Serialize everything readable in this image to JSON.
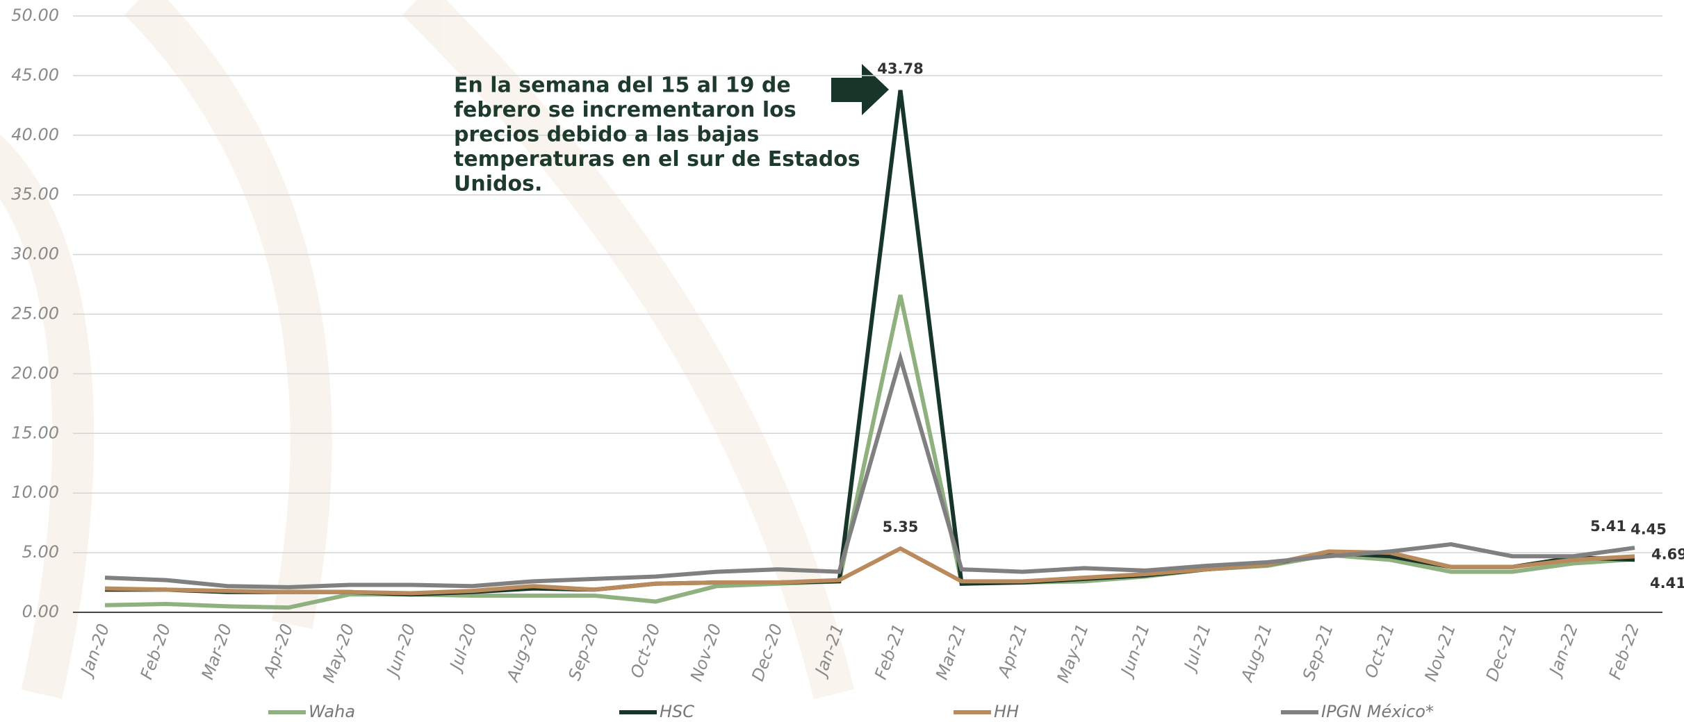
{
  "chart_data": {
    "type": "line",
    "annotation": [
      "En la semana del 15 al 19 de",
      "febrero se incrementaron los",
      "precios debido a las bajas",
      "temperaturas en el sur de Estados",
      "Unidos."
    ],
    "categories": [
      "Jan-20",
      "Feb-20",
      "Mar-20",
      "Apr-20",
      "May-20",
      "Jun-20",
      "Jul-20",
      "Aug-20",
      "Sep-20",
      "Oct-20",
      "Nov-20",
      "Dec-20",
      "Jan-21",
      "Feb-21",
      "Mar-21",
      "Apr-21",
      "May-21",
      "Jun-21",
      "Jul-21",
      "Aug-21",
      "Sep-21",
      "Oct-21",
      "Nov-21",
      "Dec-21",
      "Jan-22",
      "Feb-22"
    ],
    "series": [
      {
        "name": "Waha",
        "color": "#8fb07f",
        "values": [
          0.6,
          0.7,
          0.5,
          0.4,
          1.5,
          1.5,
          1.4,
          1.4,
          1.4,
          0.9,
          2.2,
          2.4,
          2.6,
          26.6,
          2.5,
          2.5,
          2.6,
          3.0,
          3.6,
          3.9,
          4.8,
          4.4,
          3.4,
          3.4,
          4.1,
          4.45
        ],
        "value_labels": [
          null,
          null,
          null,
          null,
          null,
          null,
          null,
          null,
          null,
          null,
          null,
          null,
          null,
          null,
          null,
          null,
          null,
          null,
          null,
          null,
          null,
          null,
          null,
          null,
          null,
          "4.45"
        ]
      },
      {
        "name": "HSC",
        "color": "#173528",
        "values": [
          1.9,
          1.9,
          1.7,
          1.7,
          1.7,
          1.5,
          1.7,
          2.0,
          1.9,
          2.4,
          2.5,
          2.5,
          2.6,
          43.78,
          2.4,
          2.5,
          2.8,
          3.1,
          3.6,
          4.0,
          5.0,
          4.7,
          3.8,
          3.8,
          4.6,
          4.41
        ],
        "value_labels": [
          null,
          null,
          null,
          null,
          null,
          null,
          null,
          null,
          null,
          null,
          null,
          null,
          null,
          "43.78",
          null,
          null,
          null,
          null,
          null,
          null,
          null,
          null,
          null,
          null,
          null,
          "4.41"
        ]
      },
      {
        "name": "HH",
        "color": "#b98a5c",
        "values": [
          2.0,
          1.9,
          1.8,
          1.7,
          1.7,
          1.6,
          1.8,
          2.2,
          1.9,
          2.4,
          2.5,
          2.5,
          2.7,
          5.35,
          2.6,
          2.6,
          2.9,
          3.2,
          3.6,
          4.0,
          5.1,
          5.0,
          3.8,
          3.8,
          4.4,
          4.69
        ],
        "value_labels": [
          null,
          null,
          null,
          null,
          null,
          null,
          null,
          null,
          null,
          null,
          null,
          null,
          null,
          "5.35",
          null,
          null,
          null,
          null,
          null,
          null,
          null,
          null,
          null,
          null,
          null,
          "4.69"
        ]
      },
      {
        "name": "IPGN México*",
        "color": "#808080",
        "values": [
          2.9,
          2.7,
          2.2,
          2.1,
          2.3,
          2.3,
          2.2,
          2.6,
          2.8,
          3.0,
          3.4,
          3.6,
          3.4,
          21.3,
          3.6,
          3.4,
          3.7,
          3.5,
          3.9,
          4.2,
          4.7,
          5.1,
          5.7,
          4.7,
          4.7,
          5.41
        ],
        "value_labels": [
          null,
          null,
          null,
          null,
          null,
          null,
          null,
          null,
          null,
          null,
          null,
          null,
          null,
          null,
          null,
          null,
          null,
          null,
          null,
          null,
          null,
          null,
          null,
          null,
          null,
          "5.41"
        ]
      }
    ],
    "ylim": [
      0,
      50
    ],
    "yticks": [
      {
        "value": 0,
        "label": "0.00"
      },
      {
        "value": 5,
        "label": "5.00"
      },
      {
        "value": 10,
        "label": "10.00"
      },
      {
        "value": 15,
        "label": "15.00"
      },
      {
        "value": 20,
        "label": "20.00"
      },
      {
        "value": 25,
        "label": "25.00"
      },
      {
        "value": 30,
        "label": "30.00"
      },
      {
        "value": 35,
        "label": "35.00"
      },
      {
        "value": 40,
        "label": "40.00"
      },
      {
        "value": 45,
        "label": "45.00"
      },
      {
        "value": 50,
        "label": "50.00"
      }
    ],
    "grid": true,
    "legend": "bottom"
  }
}
